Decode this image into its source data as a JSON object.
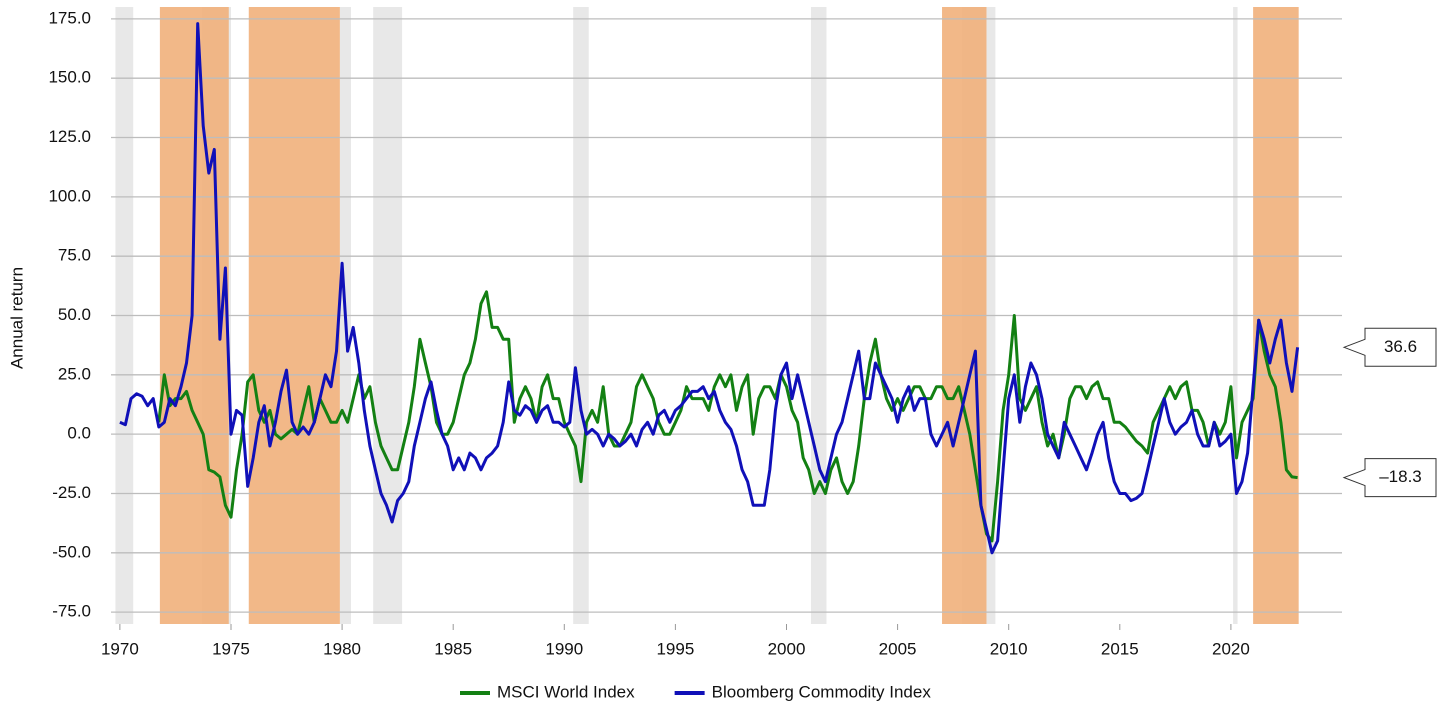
{
  "chart_data": {
    "type": "line",
    "y_label": "Annual return",
    "xlim": [
      1969.6,
      2025.0
    ],
    "ylim": [
      -80,
      180
    ],
    "xticks": [
      1970,
      1975,
      1980,
      1985,
      1990,
      1995,
      2000,
      2005,
      2010,
      2015,
      2020
    ],
    "yticks": [
      {
        "value": 175,
        "label": "175.0"
      },
      {
        "value": 150,
        "label": "150.0"
      },
      {
        "value": 125,
        "label": "125.0"
      },
      {
        "value": 100,
        "label": "100.0"
      },
      {
        "value": 75,
        "label": "75.0"
      },
      {
        "value": 50,
        "label": "50.0"
      },
      {
        "value": 25,
        "label": "25.0"
      },
      {
        "value": 0,
        "label": "0.0"
      },
      {
        "value": -25,
        "label": "-25.0"
      },
      {
        "value": -50,
        "label": "-50.0"
      },
      {
        "value": -75,
        "label": "-75.0"
      }
    ],
    "grid": true,
    "legend": "bottom",
    "bands": [
      {
        "start": 1969.8,
        "end": 1970.6,
        "color": "#e8e8e8"
      },
      {
        "start": 1973.7,
        "end": 1975.0,
        "color": "#e8e8e8"
      },
      {
        "start": 1979.9,
        "end": 1980.4,
        "color": "#e8e8e8"
      },
      {
        "start": 1981.4,
        "end": 1982.7,
        "color": "#e8e8e8"
      },
      {
        "start": 1990.4,
        "end": 1991.1,
        "color": "#e8e8e8"
      },
      {
        "start": 2001.1,
        "end": 2001.8,
        "color": "#e8e8e8"
      },
      {
        "start": 2007.9,
        "end": 2009.4,
        "color": "#e8e8e8"
      },
      {
        "start": 2020.1,
        "end": 2020.3,
        "color": "#e8e8e8"
      },
      {
        "start": 1971.8,
        "end": 1974.9,
        "color": "#f0ae78"
      },
      {
        "start": 1975.8,
        "end": 1979.9,
        "color": "#f0ae78"
      },
      {
        "start": 2007.0,
        "end": 2009.0,
        "color": "#f0ae78"
      },
      {
        "start": 2021.0,
        "end": 2023.05,
        "color": "#f0ae78"
      }
    ],
    "x": [
      1970,
      1970.25,
      1970.5,
      1970.75,
      1971,
      1971.25,
      1971.5,
      1971.75,
      1972,
      1972.25,
      1972.5,
      1972.75,
      1973,
      1973.25,
      1973.5,
      1973.75,
      1974,
      1974.25,
      1974.5,
      1974.75,
      1975,
      1975.25,
      1975.5,
      1975.75,
      1976,
      1976.25,
      1976.5,
      1976.75,
      1977,
      1977.25,
      1977.5,
      1977.75,
      1978,
      1978.25,
      1978.5,
      1978.75,
      1979,
      1979.25,
      1979.5,
      1979.75,
      1980,
      1980.25,
      1980.5,
      1980.75,
      1981,
      1981.25,
      1981.5,
      1981.75,
      1982,
      1982.25,
      1982.5,
      1982.75,
      1983,
      1983.25,
      1983.5,
      1983.75,
      1984,
      1984.25,
      1984.5,
      1984.75,
      1985,
      1985.25,
      1985.5,
      1985.75,
      1986,
      1986.25,
      1986.5,
      1986.75,
      1987,
      1987.25,
      1987.5,
      1987.75,
      1988,
      1988.25,
      1988.5,
      1988.75,
      1989,
      1989.25,
      1989.5,
      1989.75,
      1990,
      1990.25,
      1990.5,
      1990.75,
      1991,
      1991.25,
      1991.5,
      1991.75,
      1992,
      1992.25,
      1992.5,
      1992.75,
      1993,
      1993.25,
      1993.5,
      1993.75,
      1994,
      1994.25,
      1994.5,
      1994.75,
      1995,
      1995.25,
      1995.5,
      1995.75,
      1996,
      1996.25,
      1996.5,
      1996.75,
      1997,
      1997.25,
      1997.5,
      1997.75,
      1998,
      1998.25,
      1998.5,
      1998.75,
      1999,
      1999.25,
      1999.5,
      1999.75,
      2000,
      2000.25,
      2000.5,
      2000.75,
      2001,
      2001.25,
      2001.5,
      2001.75,
      2002,
      2002.25,
      2002.5,
      2002.75,
      2003,
      2003.25,
      2003.5,
      2003.75,
      2004,
      2004.25,
      2004.5,
      2004.75,
      2005,
      2005.25,
      2005.5,
      2005.75,
      2006,
      2006.25,
      2006.5,
      2006.75,
      2007,
      2007.25,
      2007.5,
      2007.75,
      2008,
      2008.25,
      2008.5,
      2008.75,
      2009,
      2009.25,
      2009.5,
      2009.75,
      2010,
      2010.25,
      2010.5,
      2010.75,
      2011,
      2011.25,
      2011.5,
      2011.75,
      2012,
      2012.25,
      2012.5,
      2012.75,
      2013,
      2013.25,
      2013.5,
      2013.75,
      2014,
      2014.25,
      2014.5,
      2014.75,
      2015,
      2015.25,
      2015.5,
      2015.75,
      2016,
      2016.25,
      2016.5,
      2016.75,
      2017,
      2017.25,
      2017.5,
      2017.75,
      2018,
      2018.25,
      2018.5,
      2018.75,
      2019,
      2019.25,
      2019.5,
      2019.75,
      2020,
      2020.25,
      2020.5,
      2020.75,
      2021,
      2021.25,
      2021.5,
      2021.75,
      2022,
      2022.25,
      2022.5,
      2022.75,
      2023
    ],
    "series": [
      {
        "name": "MSCI World Index",
        "color": "#138013",
        "last_label": "–18.3",
        "values": [
          null,
          null,
          null,
          null,
          null,
          null,
          null,
          5,
          25,
          12,
          15,
          15,
          18,
          10,
          5,
          0,
          -15,
          -16,
          -18,
          -30,
          -35,
          -15,
          0,
          22,
          25,
          10,
          5,
          10,
          0,
          -2,
          0,
          2,
          0,
          10,
          20,
          5,
          15,
          10,
          5,
          5,
          10,
          5,
          15,
          25,
          15,
          20,
          5,
          -5,
          -10,
          -15,
          -15,
          -5,
          5,
          20,
          40,
          30,
          20,
          5,
          0,
          0,
          5,
          15,
          25,
          30,
          40,
          55,
          60,
          45,
          45,
          40,
          40,
          5,
          15,
          20,
          15,
          5,
          20,
          25,
          15,
          15,
          5,
          0,
          -5,
          -20,
          5,
          10,
          5,
          20,
          0,
          -5,
          -5,
          0,
          5,
          20,
          25,
          20,
          15,
          5,
          0,
          0,
          5,
          10,
          20,
          15,
          15,
          15,
          10,
          20,
          25,
          20,
          25,
          10,
          20,
          25,
          0,
          15,
          20,
          20,
          15,
          25,
          20,
          10,
          5,
          -10,
          -15,
          -25,
          -20,
          -25,
          -15,
          -10,
          -20,
          -25,
          -20,
          -5,
          15,
          30,
          40,
          25,
          15,
          10,
          15,
          10,
          15,
          20,
          20,
          15,
          15,
          20,
          20,
          15,
          15,
          20,
          10,
          0,
          -15,
          -30,
          -42,
          -45,
          -20,
          10,
          25,
          50,
          15,
          10,
          15,
          20,
          5,
          -5,
          0,
          -10,
          0,
          15,
          20,
          20,
          15,
          20,
          22,
          15,
          15,
          5,
          5,
          3,
          0,
          -3,
          -5,
          -8,
          5,
          10,
          15,
          20,
          15,
          20,
          22,
          10,
          10,
          5,
          -5,
          5,
          0,
          5,
          20,
          -10,
          5,
          10,
          15,
          48,
          35,
          25,
          20,
          5,
          -15,
          -18,
          -18.3
        ]
      },
      {
        "name": "Bloomberg Commodity Index",
        "color": "#1010b8",
        "last_label": "36.6",
        "values": [
          5,
          4,
          15,
          17,
          16,
          12,
          15,
          3,
          5,
          15,
          12,
          20,
          30,
          50,
          173,
          130,
          110,
          120,
          40,
          70,
          0,
          10,
          8,
          -22,
          -10,
          5,
          12,
          -5,
          5,
          18,
          27,
          5,
          0,
          3,
          0,
          5,
          15,
          25,
          20,
          35,
          72,
          35,
          45,
          30,
          10,
          -5,
          -15,
          -25,
          -30,
          -37,
          -28,
          -25,
          -20,
          -5,
          5,
          15,
          22,
          10,
          0,
          -5,
          -15,
          -10,
          -15,
          -8,
          -10,
          -15,
          -10,
          -8,
          -5,
          5,
          22,
          10,
          8,
          12,
          10,
          5,
          10,
          12,
          5,
          5,
          3,
          5,
          28,
          10,
          0,
          2,
          0,
          -5,
          0,
          -2,
          -5,
          -3,
          0,
          -5,
          2,
          5,
          0,
          8,
          10,
          5,
          10,
          12,
          15,
          18,
          18,
          20,
          15,
          18,
          10,
          5,
          2,
          -5,
          -15,
          -20,
          -30,
          -30,
          -30,
          -15,
          10,
          25,
          30,
          15,
          25,
          15,
          5,
          -5,
          -15,
          -20,
          -10,
          0,
          5,
          15,
          25,
          35,
          15,
          15,
          30,
          25,
          20,
          15,
          5,
          15,
          20,
          10,
          15,
          15,
          0,
          -5,
          0,
          5,
          -5,
          5,
          15,
          25,
          35,
          -30,
          -40,
          -50,
          -45,
          -15,
          15,
          25,
          5,
          20,
          30,
          25,
          15,
          0,
          -5,
          -10,
          5,
          0,
          -5,
          -10,
          -15,
          -8,
          0,
          5,
          -10,
          -20,
          -25,
          -25,
          -28,
          -27,
          -25,
          -15,
          -5,
          5,
          15,
          5,
          0,
          3,
          5,
          10,
          0,
          -5,
          -5,
          5,
          -5,
          -3,
          0,
          -25,
          -20,
          -8,
          20,
          48,
          40,
          30,
          40,
          48,
          30,
          18,
          36.6
        ]
      }
    ]
  }
}
